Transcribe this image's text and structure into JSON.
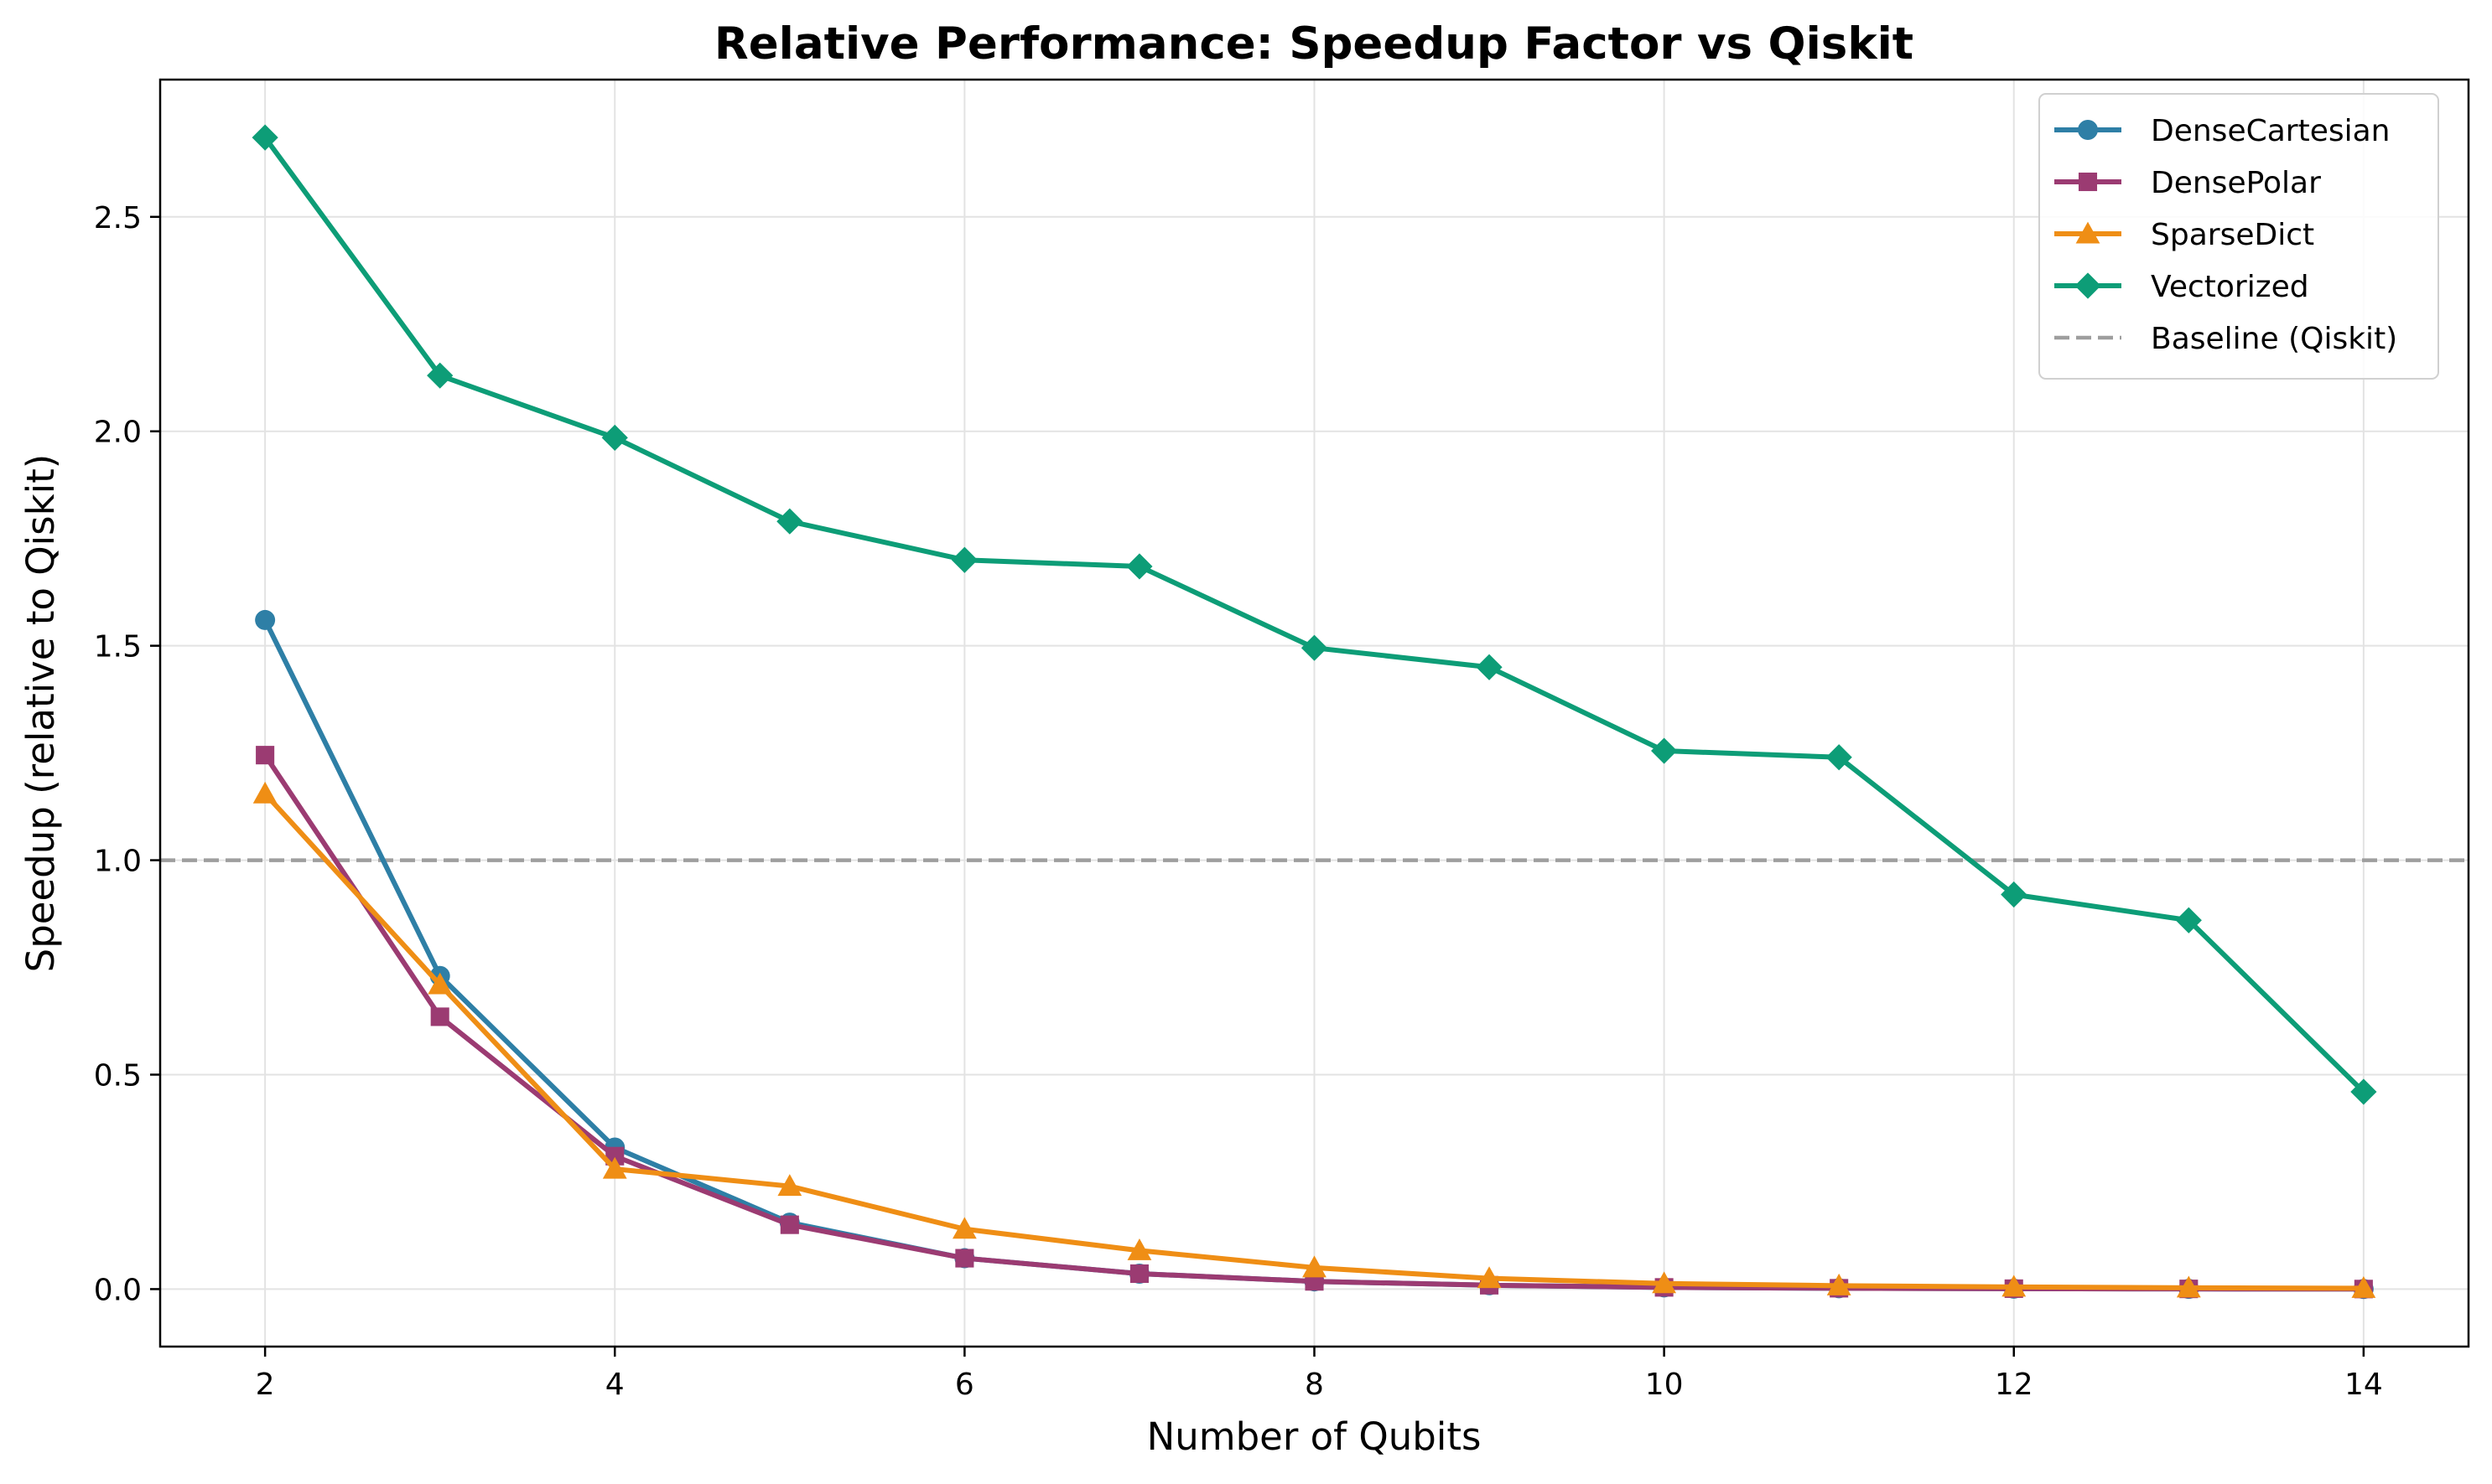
{
  "chart_data": {
    "type": "line",
    "title": "Relative Performance: Speedup Factor vs Qiskit",
    "xlabel": "Number of Qubits",
    "ylabel": "Speedup (relative to Qiskit)",
    "x": [
      2,
      3,
      4,
      5,
      6,
      7,
      8,
      9,
      10,
      11,
      12,
      13,
      14
    ],
    "xlim": [
      1.4,
      14.6
    ],
    "ylim": [
      -0.134,
      2.82
    ],
    "xticks": [
      2,
      4,
      6,
      8,
      10,
      12,
      14
    ],
    "yticks": [
      0.0,
      0.5,
      1.0,
      1.5,
      2.0,
      2.5
    ],
    "xtick_labels": [
      "2",
      "4",
      "6",
      "8",
      "10",
      "12",
      "14"
    ],
    "ytick_labels": [
      "0.0",
      "0.5",
      "1.0",
      "1.5",
      "2.0",
      "2.5"
    ],
    "grid": true,
    "legend_position": "top-right",
    "series": [
      {
        "name": "DenseCartesian",
        "color": "#2e7fa6",
        "marker": "circle",
        "values": [
          1.56,
          0.73,
          0.33,
          0.155,
          0.072,
          0.036,
          0.018,
          0.009,
          0.004,
          0.002,
          0.001,
          0.0005,
          0.0002
        ]
      },
      {
        "name": "DensePolar",
        "color": "#9b3b72",
        "marker": "square",
        "values": [
          1.245,
          0.635,
          0.31,
          0.15,
          0.072,
          0.036,
          0.018,
          0.009,
          0.004,
          0.002,
          0.001,
          0.0005,
          0.0002
        ]
      },
      {
        "name": "SparseDict",
        "color": "#ef8e15",
        "marker": "triangle",
        "values": [
          1.155,
          0.71,
          0.28,
          0.24,
          0.14,
          0.09,
          0.05,
          0.025,
          0.013,
          0.008,
          0.005,
          0.003,
          0.002
        ]
      },
      {
        "name": "Vectorized",
        "color": "#0d9d77",
        "marker": "diamond",
        "values": [
          2.685,
          2.13,
          1.985,
          1.79,
          1.7,
          1.685,
          1.495,
          1.45,
          1.255,
          1.24,
          0.92,
          0.86,
          0.46
        ]
      }
    ],
    "baseline": {
      "name": "Baseline (Qiskit)",
      "value": 1.0,
      "color": "#9e9e9e",
      "style": "dashed"
    }
  }
}
